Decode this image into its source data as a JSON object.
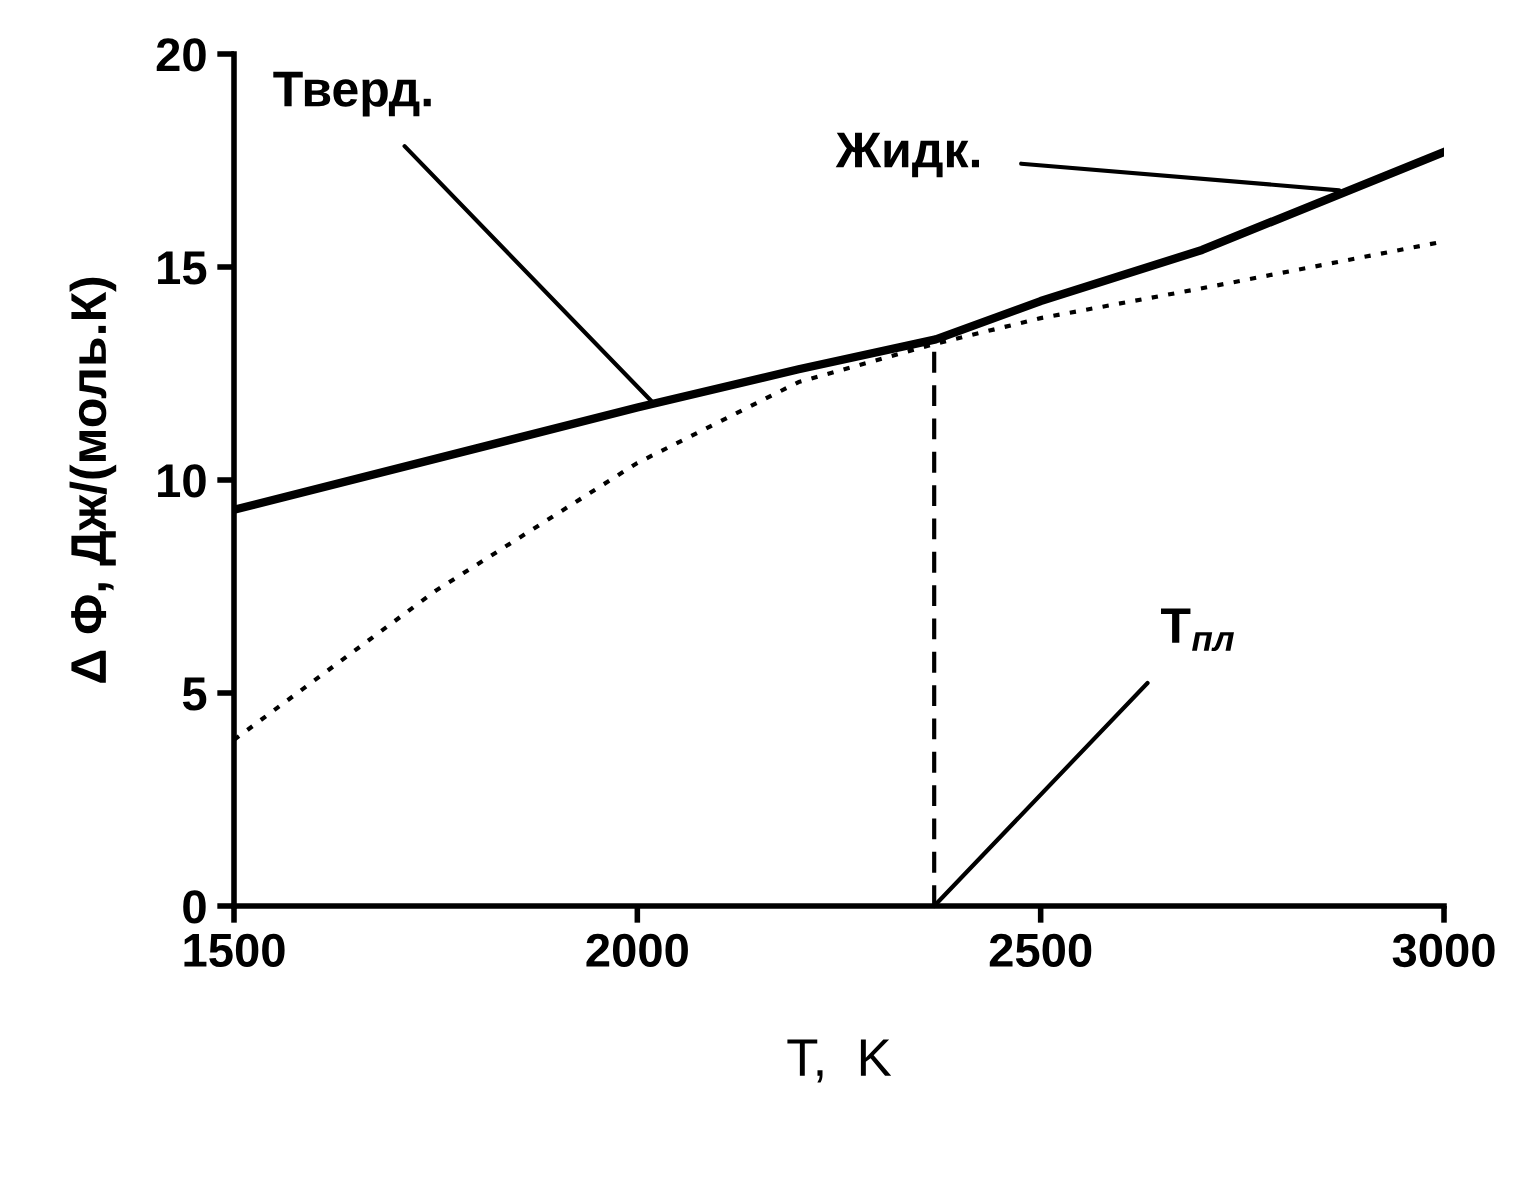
{
  "chart_data": {
    "type": "line",
    "xlabel": "T,  K",
    "ylabel": "Δ Φ, Дж/(моль.К)",
    "xlim": [
      1500,
      3000
    ],
    "xticks": [
      1500,
      2000,
      2500,
      3000
    ],
    "ylim": [
      0,
      20
    ],
    "yticks": [
      0,
      5,
      10,
      15,
      20
    ],
    "grid": false,
    "legend": false,
    "series": [
      {
        "color": "#000000",
        "line_style": "solid",
        "x": [
          1500,
          2000,
          2200,
          2370,
          2500,
          2700,
          3000
        ],
        "values": [
          9.3,
          11.7,
          12.6,
          13.3,
          14.2,
          15.4,
          17.7
        ]
      },
      {
        "color": "#000000",
        "line_style": "dotted",
        "x": [
          1500,
          1750,
          2000,
          2200,
          2370,
          2500,
          2700,
          3000
        ],
        "values": [
          3.9,
          7.4,
          10.4,
          12.3,
          13.2,
          13.8,
          14.5,
          15.6
        ]
      },
      {
        "color": "#000000",
        "line_style": "dashed",
        "x": [
          2368,
          2368
        ],
        "values": [
          0,
          13.2
        ]
      }
    ],
    "annotations": [
      {
        "text": "Тверд.",
        "x": 2020,
        "y": 11.8
      },
      {
        "text": "Жидк.",
        "x": 2870,
        "y": 16.8
      },
      {
        "text": "T$_{пл}$",
        "x": 2368,
        "y": 0
      }
    ]
  }
}
